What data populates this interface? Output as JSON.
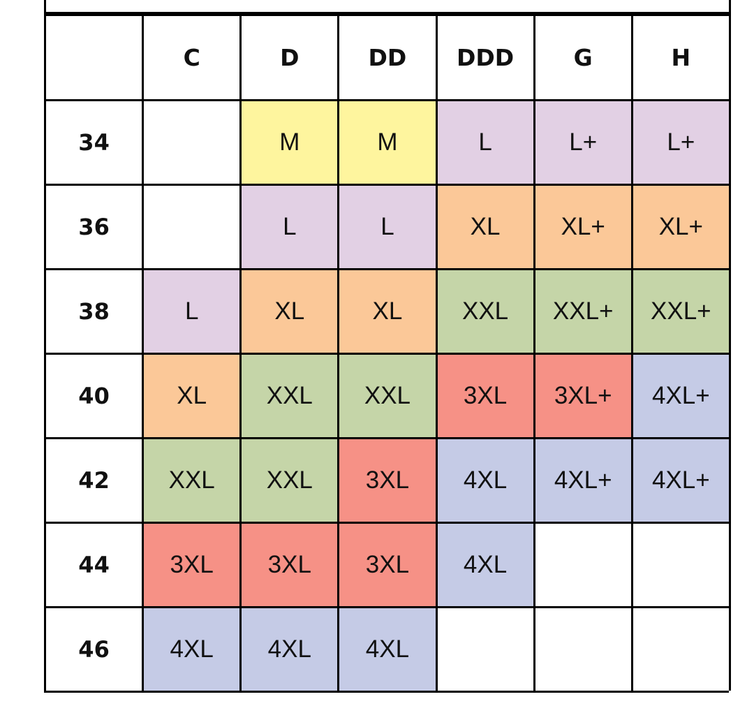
{
  "colors": {
    "M": "#fef59e",
    "L": "#e2d0e4",
    "XL": "#fbc898",
    "XXL": "#c5d5a8",
    "3XL": "#f69186",
    "4XL": "#c5cbe6",
    "empty": "#ffffff"
  },
  "header": {
    "corner": "",
    "cups": [
      "C",
      "D",
      "DD",
      "DDD",
      "G",
      "H"
    ]
  },
  "rows": [
    {
      "band": "34",
      "cells": [
        {
          "size": "",
          "color": "empty"
        },
        {
          "size": "M",
          "color": "M"
        },
        {
          "size": "M",
          "color": "M"
        },
        {
          "size": "L",
          "color": "L"
        },
        {
          "size": "L+",
          "color": "L"
        },
        {
          "size": "L+",
          "color": "L"
        }
      ]
    },
    {
      "band": "36",
      "cells": [
        {
          "size": "",
          "color": "empty"
        },
        {
          "size": "L",
          "color": "L"
        },
        {
          "size": "L",
          "color": "L"
        },
        {
          "size": "XL",
          "color": "XL"
        },
        {
          "size": "XL+",
          "color": "XL"
        },
        {
          "size": "XL+",
          "color": "XL"
        }
      ]
    },
    {
      "band": "38",
      "cells": [
        {
          "size": "L",
          "color": "L"
        },
        {
          "size": "XL",
          "color": "XL"
        },
        {
          "size": "XL",
          "color": "XL"
        },
        {
          "size": "XXL",
          "color": "XXL"
        },
        {
          "size": "XXL+",
          "color": "XXL"
        },
        {
          "size": "XXL+",
          "color": "XXL"
        }
      ]
    },
    {
      "band": "40",
      "cells": [
        {
          "size": "XL",
          "color": "XL"
        },
        {
          "size": "XXL",
          "color": "XXL"
        },
        {
          "size": "XXL",
          "color": "XXL"
        },
        {
          "size": "3XL",
          "color": "3XL"
        },
        {
          "size": "3XL+",
          "color": "3XL"
        },
        {
          "size": "4XL+",
          "color": "4XL"
        }
      ]
    },
    {
      "band": "42",
      "cells": [
        {
          "size": "XXL",
          "color": "XXL"
        },
        {
          "size": "XXL",
          "color": "XXL"
        },
        {
          "size": "3XL",
          "color": "3XL"
        },
        {
          "size": "4XL",
          "color": "4XL"
        },
        {
          "size": "4XL+",
          "color": "4XL"
        },
        {
          "size": "4XL+",
          "color": "4XL"
        }
      ]
    },
    {
      "band": "44",
      "cells": [
        {
          "size": "3XL",
          "color": "3XL"
        },
        {
          "size": "3XL",
          "color": "3XL"
        },
        {
          "size": "3XL",
          "color": "3XL"
        },
        {
          "size": "4XL",
          "color": "4XL"
        },
        {
          "size": "",
          "color": "empty"
        },
        {
          "size": "",
          "color": "empty"
        }
      ]
    },
    {
      "band": "46",
      "cells": [
        {
          "size": "4XL",
          "color": "4XL"
        },
        {
          "size": "4XL",
          "color": "4XL"
        },
        {
          "size": "4XL",
          "color": "4XL"
        },
        {
          "size": "",
          "color": "empty"
        },
        {
          "size": "",
          "color": "empty"
        },
        {
          "size": "",
          "color": "empty"
        }
      ]
    }
  ]
}
